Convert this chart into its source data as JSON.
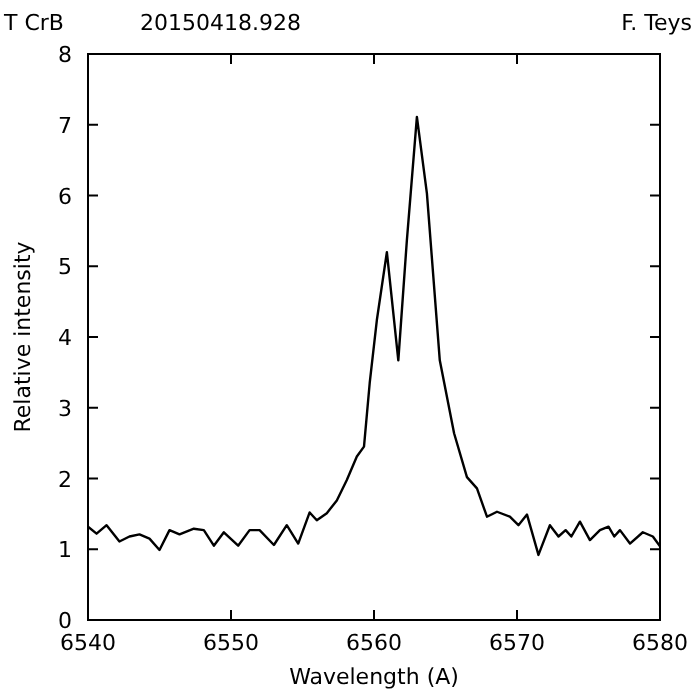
{
  "chart_data": {
    "type": "line",
    "title": "T CrB",
    "subtitle": "20150418.928",
    "annotations": [
      "F. Teys"
    ],
    "xlabel": "Wavelength (A)",
    "ylabel": "Relative intensity",
    "xlim": [
      6540,
      6580
    ],
    "xticks": [
      6540,
      6550,
      6560,
      6570,
      6580
    ],
    "ylim": [
      0,
      8
    ],
    "yticks": [
      0,
      1,
      2,
      3,
      4,
      5,
      6,
      7,
      8
    ],
    "line_style": "solid",
    "series": [
      {
        "color": "#000000",
        "x": [
          6540,
          6540.6,
          6541.3,
          6542.2,
          6542.9,
          6543.6,
          6544.3,
          6545.0,
          6545.7,
          6546.4,
          6547.4,
          6548.1,
          6548.8,
          6549.5,
          6550.5,
          6551.3,
          6552.0,
          6553.0,
          6553.9,
          6554.7,
          6555.5,
          6556.0,
          6556.7,
          6557.4,
          6558.1,
          6558.8,
          6559.3,
          6559.7,
          6560.2,
          6560.9,
          6561.7,
          6562.3,
          6563.0,
          6563.7,
          6564.6,
          6565.6,
          6566.5,
          6567.2,
          6567.9,
          6568.6,
          6569.5,
          6570.1,
          6570.7,
          6571.5,
          6572.3,
          6572.9,
          6573.4,
          6573.8,
          6574.4,
          6575.1,
          6575.8,
          6576.4,
          6576.8,
          6577.2,
          6577.9,
          6578.8,
          6579.5,
          6580
        ],
        "values": [
          1.32,
          1.22,
          1.34,
          1.11,
          1.18,
          1.21,
          1.15,
          0.99,
          1.27,
          1.21,
          1.29,
          1.27,
          1.05,
          1.24,
          1.05,
          1.27,
          1.27,
          1.06,
          1.34,
          1.08,
          1.52,
          1.41,
          1.51,
          1.69,
          1.98,
          2.31,
          2.45,
          3.35,
          4.24,
          5.2,
          3.67,
          5.37,
          7.11,
          6.03,
          3.67,
          2.64,
          2.02,
          1.86,
          1.46,
          1.53,
          1.46,
          1.34,
          1.49,
          0.92,
          1.34,
          1.18,
          1.27,
          1.18,
          1.39,
          1.13,
          1.27,
          1.32,
          1.18,
          1.27,
          1.08,
          1.24,
          1.18,
          1.04
        ]
      }
    ]
  }
}
